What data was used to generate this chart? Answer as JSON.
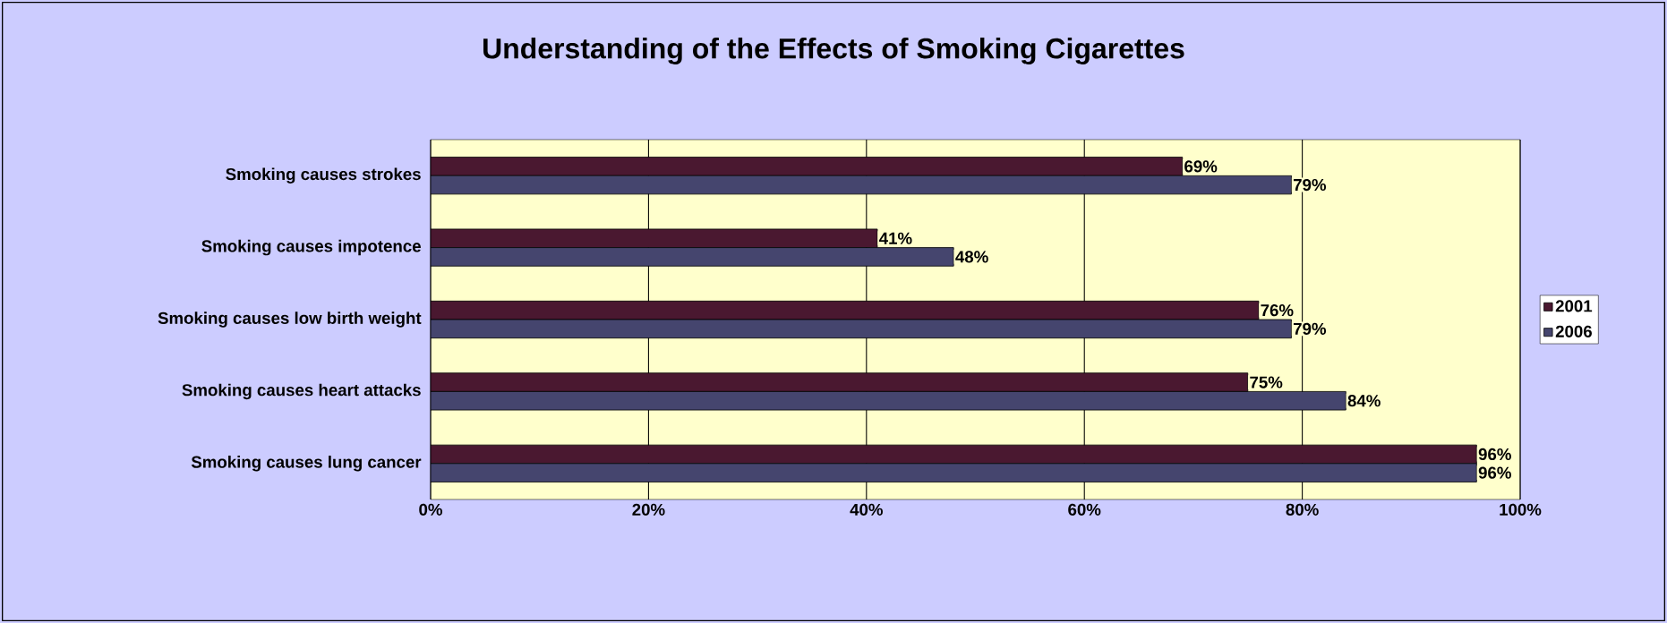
{
  "chart_data": {
    "type": "bar",
    "orientation": "horizontal",
    "title": "Understanding of the Effects of Smoking Cigarettes",
    "categories": [
      "Smoking causes strokes",
      "Smoking causes impotence",
      "Smoking causes low birth weight",
      "Smoking causes heart attacks",
      "Smoking causes lung cancer"
    ],
    "series": [
      {
        "name": "2001",
        "color": "#4a1830",
        "values": [
          69,
          41,
          76,
          75,
          96
        ],
        "value_labels": [
          "69%",
          "41%",
          "76%",
          "75%",
          "96%"
        ]
      },
      {
        "name": "2006",
        "color": "#45456e",
        "values": [
          79,
          48,
          79,
          84,
          96
        ],
        "value_labels": [
          "79%",
          "48%",
          "79%",
          "84%",
          "96%"
        ]
      }
    ],
    "xlim": [
      0,
      100
    ],
    "xticks": [
      {
        "value": 0,
        "label": "0%"
      },
      {
        "value": 20,
        "label": "20%"
      },
      {
        "value": 40,
        "label": "40%"
      },
      {
        "value": 60,
        "label": "60%"
      },
      {
        "value": 80,
        "label": "80%"
      },
      {
        "value": 100,
        "label": "100%"
      }
    ],
    "grid": "x",
    "legend": "right"
  }
}
